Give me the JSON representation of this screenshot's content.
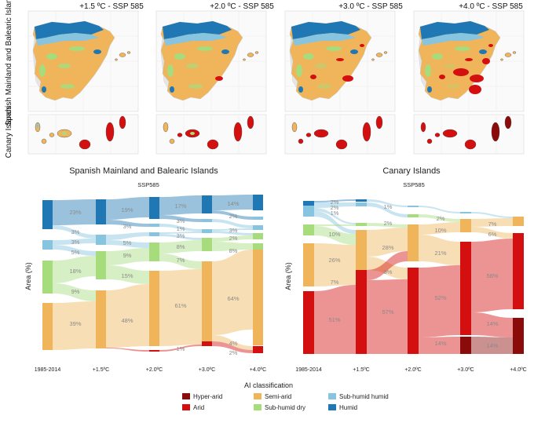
{
  "map_panels": {
    "column_titles": [
      "+1.5 ºC - SSP 585",
      "+2.0 ºC - SSP 585",
      "+3.0 ºC - SSP 585",
      "+4.0 ºC - SSP 585"
    ],
    "row_labels": [
      "Spanish Mainland and Balearic Islands",
      "Canary Islands"
    ]
  },
  "legend": {
    "title": "AI classification",
    "items": [
      {
        "label": "Hyper-arid",
        "color": "#8b0a0a"
      },
      {
        "label": "Arid",
        "color": "#d40f0f"
      },
      {
        "label": "Semi-arid",
        "color": "#f0b55a"
      },
      {
        "label": "Sub-humid dry",
        "color": "#a6dc7c"
      },
      {
        "label": "Sub-humid humid",
        "color": "#86c4e0"
      },
      {
        "label": "Humid",
        "color": "#1f77b4"
      }
    ]
  },
  "chart_data": [
    {
      "type": "sankey",
      "title": "Spanish Mainland and Balearic Islands",
      "subtitle": "SSP585",
      "ylabel": "Area (%)",
      "categories": [
        "1985-2014",
        "+1.5ºC",
        "+2.0ºC",
        "+3.0ºC",
        "+4.0ºC"
      ],
      "series": [
        {
          "name": "Humid",
          "values": [
            23,
            19,
            17,
            17,
            14
          ]
        },
        {
          "name": "Sub-humid humid",
          "values": [
            3,
            3,
            1,
            2,
            2
          ]
        },
        {
          "name": "Sub-humid dry",
          "values": [
            5,
            5,
            3,
            3,
            3
          ]
        },
        {
          "name": "Semi-arid",
          "values": [
            3,
            9,
            8,
            7,
            8
          ]
        },
        {
          "name": "Arid",
          "values": [
            18,
            15,
            61,
            64,
            64
          ]
        },
        {
          "name": "Hyper-arid",
          "values": [
            9,
            48,
            1,
            4,
            2
          ]
        }
      ],
      "labels": [
        {
          "col": 0,
          "text": "23%"
        },
        {
          "col": 0,
          "text": "3%"
        },
        {
          "col": 0,
          "text": "3%"
        },
        {
          "col": 0,
          "text": "5%"
        },
        {
          "col": 0,
          "text": "18%"
        },
        {
          "col": 0,
          "text": "9%"
        },
        {
          "col": 0,
          "text": "39%"
        },
        {
          "col": 1,
          "text": "19%"
        },
        {
          "col": 1,
          "text": "3%"
        },
        {
          "col": 1,
          "text": "5%"
        },
        {
          "col": 1,
          "text": "9%"
        },
        {
          "col": 1,
          "text": "15%"
        },
        {
          "col": 1,
          "text": "48%"
        },
        {
          "col": 2,
          "text": "17%"
        },
        {
          "col": 2,
          "text": "3%"
        },
        {
          "col": 2,
          "text": "1%"
        },
        {
          "col": 2,
          "text": "3%"
        },
        {
          "col": 2,
          "text": "8%"
        },
        {
          "col": 2,
          "text": "7%"
        },
        {
          "col": 2,
          "text": "61%"
        },
        {
          "col": 2,
          "text": "1%"
        },
        {
          "col": 3,
          "text": "14%"
        },
        {
          "col": 3,
          "text": "2%"
        },
        {
          "col": 3,
          "text": "3%"
        },
        {
          "col": 3,
          "text": "2%"
        },
        {
          "col": 3,
          "text": "8%"
        },
        {
          "col": 3,
          "text": "64%"
        },
        {
          "col": 3,
          "text": "4%"
        },
        {
          "col": 3,
          "text": "2%"
        }
      ]
    },
    {
      "type": "sankey",
      "title": "Canary Islands",
      "subtitle": "SSP585",
      "ylabel": "Area (%)",
      "categories": [
        "1985-2014",
        "+1.5ºC",
        "+2.0ºC",
        "+3.0ºC",
        "+4.0ºC"
      ],
      "labels": [
        {
          "col": 0,
          "text": "2%"
        },
        {
          "col": 0,
          "text": "2%"
        },
        {
          "col": 0,
          "text": "1%"
        },
        {
          "col": 0,
          "text": "10%"
        },
        {
          "col": 0,
          "text": "26%"
        },
        {
          "col": 0,
          "text": "7%"
        },
        {
          "col": 0,
          "text": "51%"
        },
        {
          "col": 1,
          "text": "1%"
        },
        {
          "col": 1,
          "text": "2%"
        },
        {
          "col": 1,
          "text": "28%"
        },
        {
          "col": 1,
          "text": "9%"
        },
        {
          "col": 1,
          "text": "57%"
        },
        {
          "col": 2,
          "text": "2%"
        },
        {
          "col": 2,
          "text": "10%"
        },
        {
          "col": 2,
          "text": "21%"
        },
        {
          "col": 2,
          "text": "52%"
        },
        {
          "col": 2,
          "text": "14%"
        },
        {
          "col": 3,
          "text": "7%"
        },
        {
          "col": 3,
          "text": "6%"
        },
        {
          "col": 3,
          "text": "58%"
        },
        {
          "col": 3,
          "text": "14%"
        },
        {
          "col": 3,
          "text": "14%"
        }
      ]
    }
  ]
}
